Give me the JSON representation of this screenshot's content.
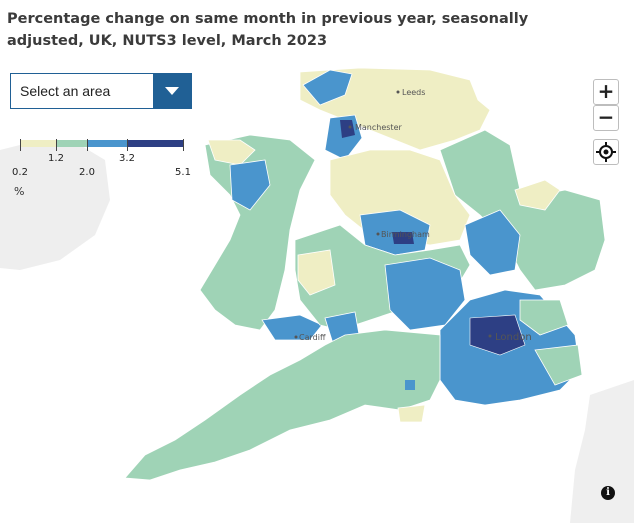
{
  "title": "Percentage change on same month in previous year, seasonally adjusted, UK, NUTS3 level, March 2023",
  "area_select": {
    "placeholder": "Select an area"
  },
  "legend": {
    "breaks": [
      "0.2",
      "1.2",
      "2.0",
      "3.2",
      "5.1"
    ],
    "colors": [
      "#efeec4",
      "#9fd3b6",
      "#4a95cd",
      "#2d3f84"
    ],
    "unit": "%"
  },
  "map_controls": {
    "zoom_in": "+",
    "zoom_out": "−",
    "locate_icon": "crosshair-icon",
    "info": "i"
  },
  "cities": [
    "Leeds",
    "Manchester",
    "Birmingham",
    "Cardiff",
    "London"
  ]
}
